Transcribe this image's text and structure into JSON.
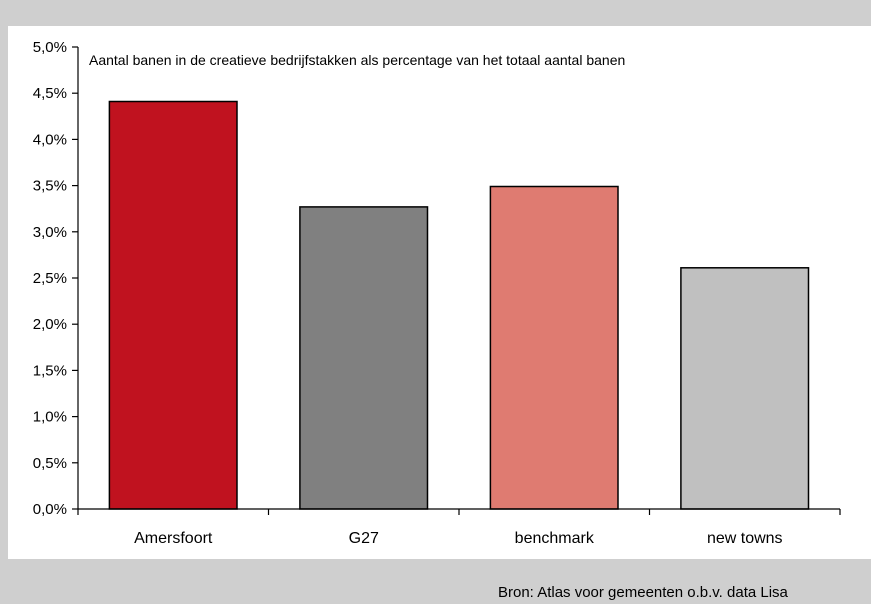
{
  "chart_data": {
    "type": "bar",
    "title": "Aantal banen in de creatieve bedrijfstakken als percentage van het totaal aantal banen",
    "categories": [
      "Amersfoort",
      "G27",
      "benchmark",
      "new towns"
    ],
    "values": [
      4.41,
      3.27,
      3.49,
      2.61
    ],
    "colors": [
      "#c0121f",
      "#808080",
      "#df7b71",
      "#c0c0c0"
    ],
    "ylim": [
      0,
      5
    ],
    "ytick_step": 0.5,
    "ytick_labels": [
      "0,0%",
      "0,5%",
      "1,0%",
      "1,5%",
      "2,0%",
      "2,5%",
      "3,0%",
      "3,5%",
      "4,0%",
      "4,5%",
      "5,0%"
    ],
    "xlabel": "",
    "ylabel": "",
    "grid": false,
    "legend": "none"
  },
  "source": "Bron: Atlas voor gemeenten o.b.v. data Lisa"
}
